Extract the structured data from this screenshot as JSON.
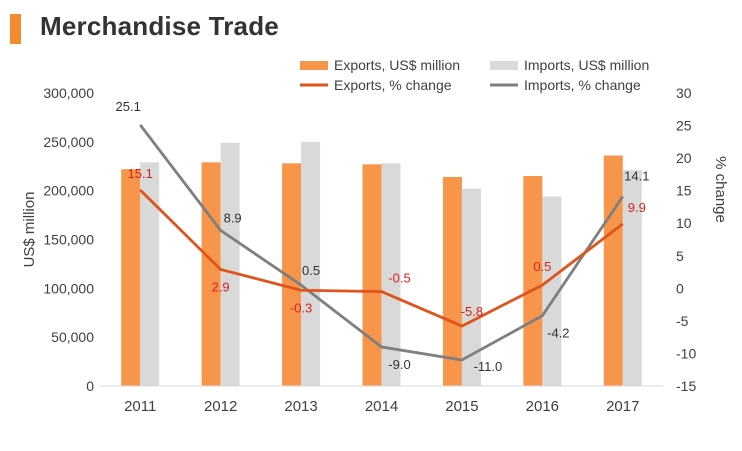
{
  "title": "Merchandise Trade",
  "colors": {
    "exports_bar": "#f7954a",
    "imports_bar": "#d9d9d9",
    "exports_line": "#e0531a",
    "imports_line": "#7f7f7f",
    "title_accent": "#f28a30",
    "exports_label": "#d6241c",
    "imports_label": "#333333"
  },
  "chart_data": {
    "type": "bar+line",
    "categories": [
      "2011",
      "2012",
      "2013",
      "2014",
      "2015",
      "2016",
      "2017"
    ],
    "series": [
      {
        "name": "Exports, US$ million",
        "kind": "bar",
        "axis": "left",
        "values": [
          222000,
          229000,
          228000,
          227000,
          214000,
          215000,
          236000
        ]
      },
      {
        "name": "Imports, US$ million",
        "kind": "bar",
        "axis": "left",
        "values": [
          229000,
          249000,
          250000,
          228000,
          202000,
          194000,
          221000
        ]
      },
      {
        "name": "Exports, % change",
        "kind": "line",
        "axis": "right",
        "values": [
          15.1,
          2.9,
          -0.3,
          -0.5,
          -5.8,
          0.5,
          9.9
        ],
        "labels": [
          "15.1",
          "2.9",
          "-0.3",
          "-0.5",
          "-5.8",
          "0.5",
          "9.9"
        ]
      },
      {
        "name": "Imports, % change",
        "kind": "line",
        "axis": "right",
        "values": [
          25.1,
          8.9,
          0.5,
          -9.0,
          -11.0,
          -4.2,
          14.1
        ],
        "labels": [
          "25.1",
          "8.9",
          "0.5",
          "-9.0",
          "-11.0",
          "-4.2",
          "14.1"
        ]
      }
    ],
    "ylabel": "US$ million",
    "y2label": "% change",
    "ylim": [
      0,
      300000
    ],
    "y2lim": [
      -15,
      30
    ],
    "yticks": [
      "0",
      "50,000",
      "100,000",
      "150,000",
      "200,000",
      "250,000",
      "300,000"
    ],
    "y2ticks": [
      "-15",
      "-10",
      "-5",
      "0",
      "5",
      "10",
      "15",
      "20",
      "25",
      "30"
    ],
    "legend_position": "top-right",
    "grid": false
  }
}
